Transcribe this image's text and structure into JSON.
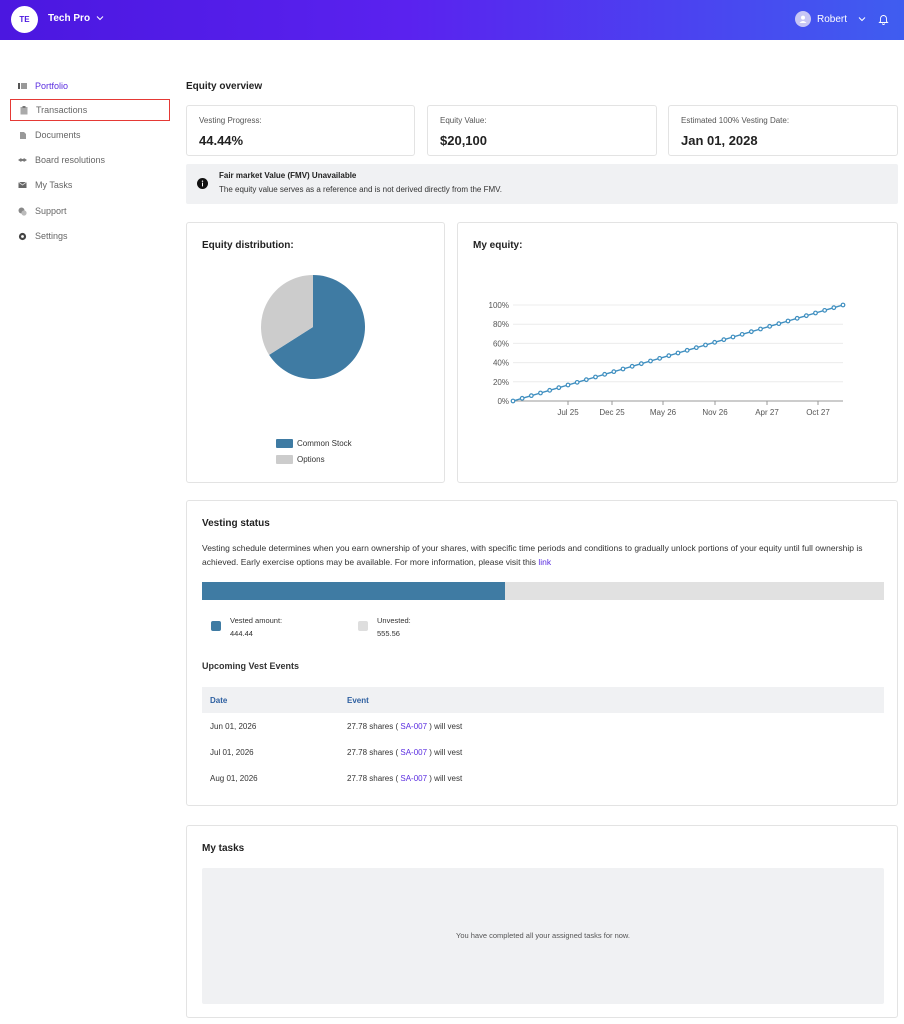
{
  "header": {
    "org_initials": "TE",
    "org_name": "Tech Pro",
    "user_name": "Robert"
  },
  "sidebar": {
    "items": [
      {
        "label": "Portfolio",
        "icon": "portfolio-icon"
      },
      {
        "label": "Transactions",
        "icon": "clipboard-icon"
      },
      {
        "label": "Documents",
        "icon": "document-icon"
      },
      {
        "label": "Board resolutions",
        "icon": "handshake-icon"
      },
      {
        "label": "My Tasks",
        "icon": "inbox-icon"
      },
      {
        "label": "Support",
        "icon": "support-icon"
      },
      {
        "label": "Settings",
        "icon": "gear-icon"
      }
    ]
  },
  "overview": {
    "title": "Equity overview",
    "cards": [
      {
        "label": "Vesting Progress:",
        "value": "44.44%"
      },
      {
        "label": "Equity Value:",
        "value": "$20,100"
      },
      {
        "label": "Estimated 100% Vesting Date:",
        "value": "Jan 01, 2028"
      }
    ],
    "notice_title": "Fair market Value (FMV) Unavailable",
    "notice_text": "The equity value serves as a reference and is not derived directly from the FMV."
  },
  "distribution": {
    "title": "Equity distribution:",
    "legend": [
      "Common Stock",
      "Options"
    ]
  },
  "my_equity": {
    "title": "My equity:"
  },
  "chart_data": [
    {
      "type": "pie",
      "title": "Equity distribution:",
      "labels": [
        "Common Stock",
        "Options"
      ],
      "values": [
        66,
        34
      ],
      "colors": [
        "#3f7ba3",
        "#cccccc"
      ]
    },
    {
      "type": "line",
      "title": "My equity:",
      "x_ticks": [
        "Jul 25",
        "Dec 25",
        "May 26",
        "Nov 26",
        "Apr 27",
        "Oct 27"
      ],
      "y_ticks": [
        "0%",
        "20%",
        "40%",
        "60%",
        "80%",
        "100%"
      ],
      "ylim": [
        0,
        100
      ],
      "x_range": [
        "Feb 25",
        "Jan 28"
      ],
      "values": [
        0,
        2.78,
        5.56,
        8.33,
        11.11,
        13.89,
        16.67,
        19.44,
        22.22,
        25.0,
        27.78,
        30.56,
        33.33,
        36.11,
        38.89,
        41.67,
        44.44,
        47.22,
        50.0,
        52.78,
        55.56,
        58.33,
        61.11,
        63.89,
        66.67,
        69.44,
        72.22,
        75.0,
        77.78,
        80.56,
        83.33,
        86.11,
        88.89,
        91.67,
        94.44,
        97.22,
        100.0
      ],
      "color": "#3f8fc0"
    }
  ],
  "vesting": {
    "title": "Vesting status",
    "description": "Vesting schedule determines when you earn ownership of your shares, with specific time periods and conditions to gradually unlock portions of your equity until full ownership is achieved. Early exercise options may be available. For more information, please visit this",
    "link_text": "link",
    "vested_fraction": 0.4444,
    "vested_label": "Vested amount:",
    "vested_value": "444.44",
    "unvested_label": "Unvested:",
    "unvested_value": "555.56",
    "upcoming_title": "Upcoming Vest Events",
    "columns": [
      "Date",
      "Event"
    ],
    "rows": [
      {
        "date": "Jun 01, 2026",
        "pre": "27.78 shares (",
        "code": "SA-007",
        "post": ") will vest"
      },
      {
        "date": "Jul 01, 2026",
        "pre": "27.78 shares (",
        "code": "SA-007",
        "post": ") will vest"
      },
      {
        "date": "Aug 01, 2026",
        "pre": "27.78 shares (",
        "code": "SA-007",
        "post": ") will vest"
      }
    ]
  },
  "tasks": {
    "title": "My tasks",
    "empty_message": "You have completed all your assigned tasks for now."
  }
}
